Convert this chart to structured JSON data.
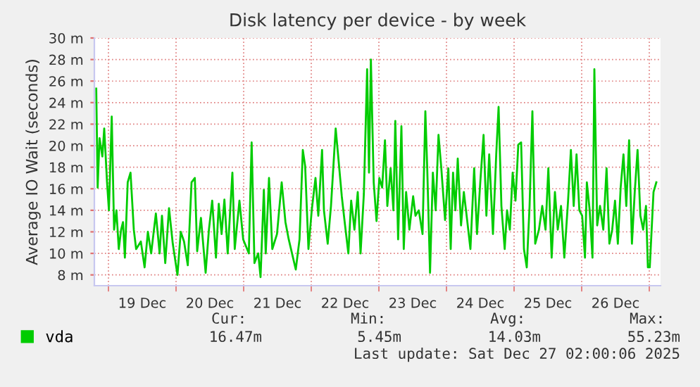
{
  "chart_data": {
    "type": "line",
    "title": "Disk latency per device - by week",
    "ylabel": "Average IO Wait (seconds)",
    "xlim": [
      "2025-12-18T19:00",
      "2025-12-27T04:00"
    ],
    "xticks": [
      {
        "value": "2025-12-19T00:00",
        "label": null
      },
      {
        "value": "2025-12-19T12:00",
        "label": "19 Dec"
      },
      {
        "value": "2025-12-20T00:00",
        "label": null
      },
      {
        "value": "2025-12-20T12:00",
        "label": "20 Dec"
      },
      {
        "value": "2025-12-21T00:00",
        "label": null
      },
      {
        "value": "2025-12-21T12:00",
        "label": "21 Dec"
      },
      {
        "value": "2025-12-22T00:00",
        "label": null
      },
      {
        "value": "2025-12-22T12:00",
        "label": "22 Dec"
      },
      {
        "value": "2025-12-23T00:00",
        "label": null
      },
      {
        "value": "2025-12-23T12:00",
        "label": "23 Dec"
      },
      {
        "value": "2025-12-24T00:00",
        "label": null
      },
      {
        "value": "2025-12-24T12:00",
        "label": "24 Dec"
      },
      {
        "value": "2025-12-25T00:00",
        "label": null
      },
      {
        "value": "2025-12-25T12:00",
        "label": "25 Dec"
      },
      {
        "value": "2025-12-26T00:00",
        "label": null
      },
      {
        "value": "2025-12-26T12:00",
        "label": "26 Dec"
      },
      {
        "value": "2025-12-27T00:00",
        "label": null
      }
    ],
    "ylim": [
      7,
      30
    ],
    "yticks": [
      {
        "value": 8,
        "label": "8 m"
      },
      {
        "value": 10,
        "label": "10 m"
      },
      {
        "value": 12,
        "label": "12 m"
      },
      {
        "value": 14,
        "label": "14 m"
      },
      {
        "value": 16,
        "label": "16 m"
      },
      {
        "value": 18,
        "label": "18 m"
      },
      {
        "value": 20,
        "label": "20 m"
      },
      {
        "value": 22,
        "label": "22 m"
      },
      {
        "value": 24,
        "label": "24 m"
      },
      {
        "value": 26,
        "label": "26 m"
      },
      {
        "value": 28,
        "label": "28 m"
      },
      {
        "value": 30,
        "label": "30 m"
      }
    ],
    "grid": true,
    "legend": "bottom left",
    "series": [
      {
        "name": "vda",
        "color": "#00cc00",
        "x": [
          "2025-12-18T19:40",
          "2025-12-18T20:10",
          "2025-12-18T20:50",
          "2025-12-18T21:50",
          "2025-12-18T22:30",
          "2025-12-18T23:30",
          "2025-12-19T00:10",
          "2025-12-19T01:10",
          "2025-12-19T02:00",
          "2025-12-19T02:50",
          "2025-12-19T03:40",
          "2025-12-19T04:30",
          "2025-12-19T05:10",
          "2025-12-19T05:50",
          "2025-12-19T06:50",
          "2025-12-19T07:50",
          "2025-12-19T09:00",
          "2025-12-19T09:50",
          "2025-12-19T11:30",
          "2025-12-19T12:50",
          "2025-12-19T14:00",
          "2025-12-19T15:10",
          "2025-12-19T16:50",
          "2025-12-19T18:10",
          "2025-12-19T19:00",
          "2025-12-19T20:10",
          "2025-12-19T21:30",
          "2025-12-19T22:50",
          "2025-12-20T00:30",
          "2025-12-20T01:40",
          "2025-12-20T02:50",
          "2025-12-20T04:10",
          "2025-12-20T05:30",
          "2025-12-20T06:40",
          "2025-12-20T07:30",
          "2025-12-20T08:50",
          "2025-12-20T10:30",
          "2025-12-20T11:40",
          "2025-12-20T12:50",
          "2025-12-20T14:10",
          "2025-12-20T15:10",
          "2025-12-20T16:10",
          "2025-12-20T17:10",
          "2025-12-20T18:20",
          "2025-12-20T20:00",
          "2025-12-20T20:50",
          "2025-12-20T22:30",
          "2025-12-20T23:50",
          "2025-12-21T01:50",
          "2025-12-21T02:50",
          "2025-12-21T03:50",
          "2025-12-21T05:10",
          "2025-12-21T06:00",
          "2025-12-21T07:10",
          "2025-12-21T07:50",
          "2025-12-21T09:00",
          "2025-12-21T10:10",
          "2025-12-21T11:50",
          "2025-12-21T13:30",
          "2025-12-21T14:50",
          "2025-12-21T16:00",
          "2025-12-21T17:10",
          "2025-12-21T18:30",
          "2025-12-21T19:50",
          "2025-12-21T21:00",
          "2025-12-21T21:50",
          "2025-12-21T23:00",
          "2025-12-22T00:10",
          "2025-12-22T01:30",
          "2025-12-22T02:30",
          "2025-12-22T03:50",
          "2025-12-22T04:30",
          "2025-12-22T05:50",
          "2025-12-22T07:00",
          "2025-12-22T08:40",
          "2025-12-22T09:30",
          "2025-12-22T10:50",
          "2025-12-22T12:00",
          "2025-12-22T13:10",
          "2025-12-22T14:10",
          "2025-12-22T15:20",
          "2025-12-22T16:30",
          "2025-12-22T17:30",
          "2025-12-22T18:40",
          "2025-12-22T19:50",
          "2025-12-22T20:30",
          "2025-12-22T21:10",
          "2025-12-22T22:10",
          "2025-12-22T23:10",
          "2025-12-23T00:10",
          "2025-12-23T01:10",
          "2025-12-23T02:10",
          "2025-12-23T03:00",
          "2025-12-23T04:10",
          "2025-12-23T05:10",
          "2025-12-23T05:50",
          "2025-12-23T06:50",
          "2025-12-23T08:00",
          "2025-12-23T08:50",
          "2025-12-23T09:40",
          "2025-12-23T10:50",
          "2025-12-23T12:10",
          "2025-12-23T13:00",
          "2025-12-23T14:10",
          "2025-12-23T15:30",
          "2025-12-23T16:30",
          "2025-12-23T17:10",
          "2025-12-23T18:10",
          "2025-12-23T19:10",
          "2025-12-23T20:10",
          "2025-12-23T21:10",
          "2025-12-23T22:10",
          "2025-12-23T23:30",
          "2025-12-24T00:40",
          "2025-12-24T01:30",
          "2025-12-24T02:20",
          "2025-12-24T03:10",
          "2025-12-24T04:00",
          "2025-12-24T05:10",
          "2025-12-24T06:10",
          "2025-12-24T07:20",
          "2025-12-24T08:30",
          "2025-12-24T09:50",
          "2025-12-24T10:50",
          "2025-12-24T12:00",
          "2025-12-24T13:10",
          "2025-12-24T14:10",
          "2025-12-24T15:10",
          "2025-12-24T16:30",
          "2025-12-24T17:40",
          "2025-12-24T18:30",
          "2025-12-24T19:30",
          "2025-12-24T20:40",
          "2025-12-24T21:30",
          "2025-12-24T22:30",
          "2025-12-24T23:30",
          "2025-12-25T00:30",
          "2025-12-25T01:30",
          "2025-12-25T02:30",
          "2025-12-25T03:30",
          "2025-12-25T04:30",
          "2025-12-25T05:30",
          "2025-12-25T06:30",
          "2025-12-25T07:30",
          "2025-12-25T08:50",
          "2025-12-25T10:00",
          "2025-12-25T11:10",
          "2025-12-25T12:10",
          "2025-12-25T13:20",
          "2025-12-25T14:30",
          "2025-12-25T15:30",
          "2025-12-25T16:40",
          "2025-12-25T17:50",
          "2025-12-25T19:10",
          "2025-12-25T20:10",
          "2025-12-25T21:10",
          "2025-12-25T22:10",
          "2025-12-25T23:10",
          "2025-12-26T00:10",
          "2025-12-26T01:10",
          "2025-12-26T01:50",
          "2025-12-26T02:50",
          "2025-12-26T03:50",
          "2025-12-26T04:30",
          "2025-12-26T05:30",
          "2025-12-26T06:30",
          "2025-12-26T07:40",
          "2025-12-26T08:50",
          "2025-12-26T09:50",
          "2025-12-26T10:50",
          "2025-12-26T11:50",
          "2025-12-26T12:50",
          "2025-12-26T13:50",
          "2025-12-26T14:50",
          "2025-12-26T15:50",
          "2025-12-26T16:50",
          "2025-12-26T17:50",
          "2025-12-26T18:50",
          "2025-12-26T19:50",
          "2025-12-26T20:50",
          "2025-12-26T21:50",
          "2025-12-26T22:50",
          "2025-12-26T23:30",
          "2025-12-27T00:10",
          "2025-12-27T00:50",
          "2025-12-27T01:30",
          "2025-12-27T02:30"
        ],
        "values": [
          25.3,
          16.1,
          20.7,
          19,
          21.6,
          16.6,
          14,
          22.7,
          12.2,
          14,
          10.4,
          12.2,
          12.9,
          9.6,
          16.6,
          17.5,
          12.2,
          10.4,
          11.1,
          8.7,
          12,
          10,
          13.7,
          10,
          13.5,
          9.1,
          14.2,
          10.9,
          8,
          12,
          11.1,
          8.9,
          16.6,
          17,
          10.2,
          13.3,
          8.2,
          12.2,
          14.9,
          9.6,
          14.6,
          11.8,
          15,
          10,
          17.5,
          10.4,
          14.9,
          11.3,
          10,
          20.3,
          9.1,
          10,
          7.8,
          15.9,
          10,
          17,
          10.4,
          11.8,
          16.6,
          12.9,
          11.3,
          10,
          8.5,
          11.3,
          19.6,
          18.1,
          10.4,
          14,
          17,
          13.5,
          19.6,
          14,
          10.9,
          14.4,
          21.6,
          19.2,
          15.3,
          12.6,
          10,
          14.9,
          12.2,
          15.7,
          10,
          15.5,
          27.1,
          17.5,
          28,
          16.6,
          13,
          17,
          16.1,
          20.5,
          14.4,
          17.9,
          14,
          22.3,
          11.3,
          21.8,
          10.4,
          15.7,
          12.2,
          15.3,
          13.5,
          14,
          11.8,
          23.2,
          17.9,
          8.2,
          17.5,
          14,
          21,
          17.9,
          13.1,
          17.9,
          10.4,
          17.5,
          14,
          18.8,
          12.6,
          15.7,
          13.1,
          10.4,
          17.9,
          11.8,
          16.6,
          21,
          13.5,
          19.2,
          11.8,
          19.2,
          23.6,
          14.4,
          10.4,
          14,
          12.2,
          17.5,
          14.9,
          20.1,
          20.3,
          10.4,
          8.7,
          14.4,
          23.2,
          10.9,
          12.2,
          14.4,
          12.2,
          17.9,
          9.6,
          15.7,
          12.2,
          14.4,
          9.6,
          14.9,
          19.6,
          14.4,
          19.2,
          14,
          13.5,
          9.6,
          16.6,
          14,
          9.6,
          27.1,
          12.6,
          14.4,
          12.2,
          17.9,
          10.9,
          12.2,
          14.9,
          10.9,
          16.1,
          19.2,
          14.4,
          20.5,
          10.9,
          15.7,
          19.6,
          13.5,
          12.2,
          14.4,
          8.7,
          8.7,
          12.2,
          15.7,
          16.6
        ]
      }
    ],
    "annotations": [
      "Cur:",
      "Min:",
      "Avg:",
      "Max:",
      "16.47m",
      "5.45m",
      "14.03m",
      "55.23m",
      "Last update: Sat Dec 27 02:00:06 2025"
    ]
  }
}
